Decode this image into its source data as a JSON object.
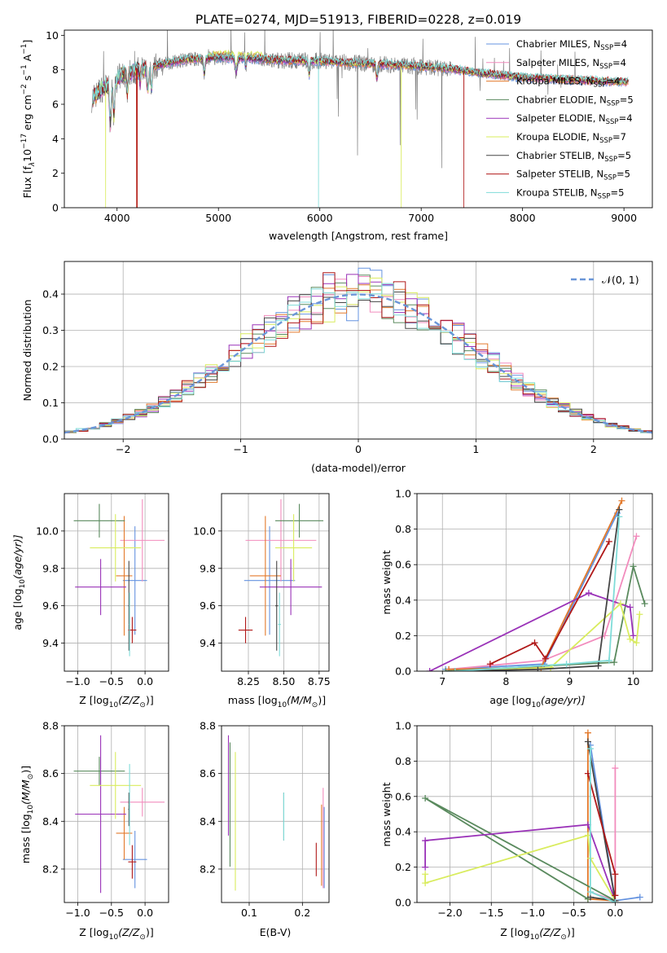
{
  "figure_title": "PLATE=0274, MJD=51913, FIBERID=0228, z=0.019",
  "models": [
    {
      "name": "Chabrier MILES",
      "nssp": "4",
      "color": "#6593e0"
    },
    {
      "name": "Salpeter MILES",
      "nssp": "4",
      "color": "#f28cbd"
    },
    {
      "name": "Kroupa MILES",
      "nssp": "4",
      "color": "#e37a2c"
    },
    {
      "name": "Chabrier ELODIE",
      "nssp": "5",
      "color": "#5a8a5e"
    },
    {
      "name": "Salpeter ELODIE",
      "nssp": "4",
      "color": "#9a32b8"
    },
    {
      "name": "Kroupa ELODIE",
      "nssp": "7",
      "color": "#d9ec5e"
    },
    {
      "name": "Chabrier STELIB",
      "nssp": "5",
      "color": "#454545"
    },
    {
      "name": "Salpeter STELIB",
      "nssp": "5",
      "color": "#b01818"
    },
    {
      "name": "Kroupa STELIB",
      "nssp": "5",
      "color": "#7fdcd8"
    }
  ],
  "labels": {
    "spec_x": "wavelength [Angstrom, rest frame]",
    "spec_y_pre": "Flux [f",
    "spec_y_lam": "λ",
    "spec_y_mid": "10",
    "spec_y_e1": "−17",
    "spec_y_unit": " erg cm",
    "spec_y_e2": "−2",
    "spec_y_s": " s",
    "spec_y_e3": "−1",
    "spec_y_a": " A",
    "spec_y_e4": "−1",
    "spec_y_end": "]",
    "nssp_pre": ", N",
    "nssp_sub": "SSP",
    "nssp_eq": "=",
    "hist_x": "(data-model)/error",
    "hist_y": "Normed distribution",
    "hist_legend_pre": "𝒩(0, 1)",
    "age_label": "age  [log",
    "age_label_post": "(age/yr)]",
    "Z_label": "Z [log",
    "Z_label_post": "(Z/Z",
    "Z_label_end": ")]",
    "mass_label": "mass [log",
    "mass_label_post": "(M/M",
    "mass_label_end": ")]",
    "sun": "⊙",
    "ten": "10",
    "ebv_label": "E(B-V)",
    "mw_label": "mass weight"
  },
  "chart_data": [
    {
      "type": "line",
      "title": "PLATE=0274, MJD=51913, FIBERID=0228, z=0.019",
      "xlabel": "wavelength [Angstrom, rest frame]",
      "ylabel": "Flux [fλ 10^-17 erg cm^-2 s^-1 A^-1]",
      "xlim": [
        3480,
        9280
      ],
      "ylim": [
        0,
        10.3
      ],
      "xticks": [
        4000,
        5000,
        6000,
        7000,
        8000,
        9000
      ],
      "yticks": [
        0,
        2,
        4,
        6,
        8,
        10
      ],
      "continuum": [
        [
          3750,
          6.3
        ],
        [
          3850,
          6.9
        ],
        [
          3950,
          7.2
        ],
        [
          4050,
          7.7
        ],
        [
          4150,
          7.9
        ],
        [
          4300,
          8.1
        ],
        [
          4500,
          8.4
        ],
        [
          4700,
          8.6
        ],
        [
          5000,
          8.7
        ],
        [
          5300,
          8.65
        ],
        [
          5600,
          8.55
        ],
        [
          6000,
          8.5
        ],
        [
          6500,
          8.35
        ],
        [
          7000,
          8.2
        ],
        [
          7300,
          8.05
        ],
        [
          7600,
          7.8
        ],
        [
          8000,
          7.55
        ],
        [
          8500,
          7.4
        ],
        [
          9000,
          7.3
        ],
        [
          9050,
          7.3
        ]
      ],
      "legend_position": "upper right"
    },
    {
      "type": "bar",
      "xlabel": "(data-model)/error",
      "ylabel": "Normed distribution",
      "xlim": [
        -2.5,
        2.5
      ],
      "ylim": [
        0,
        0.49
      ],
      "xticks": [
        -2,
        -1,
        0,
        1,
        2
      ],
      "yticks": [
        0.0,
        0.1,
        0.2,
        0.3,
        0.4
      ],
      "bin_width": 0.1,
      "reference": "N(0,1)",
      "legend_position": "upper right"
    },
    {
      "type": "scatter",
      "xlabel": "Z [log10(Z/Z⊙)]",
      "ylabel": "age [log10(age/yr)]",
      "xlim": [
        -1.2,
        0.35
      ],
      "ylim": [
        9.25,
        10.2
      ],
      "xticks": [
        -1.0,
        -0.5,
        0.0
      ],
      "yticks": [
        9.4,
        9.6,
        9.8,
        10.0
      ],
      "points": [
        {
          "x": -0.15,
          "y": 9.735,
          "xerr": 0.18,
          "yerr": 0.29
        },
        {
          "x": -0.04,
          "y": 9.95,
          "xerr": 0.33,
          "yerr": 0.22
        },
        {
          "x": -0.31,
          "y": 9.76,
          "xerr": 0.12,
          "yerr": 0.32
        },
        {
          "x": -0.68,
          "y": 10.055,
          "xerr": 0.38,
          "yerr": 0.09
        },
        {
          "x": -0.66,
          "y": 9.7,
          "xerr": 0.38,
          "yerr": 0.15
        },
        {
          "x": -0.44,
          "y": 9.91,
          "xerr": 0.38,
          "yerr": 0.18
        },
        {
          "x": -0.24,
          "y": 9.6,
          "xerr": 0.01,
          "yerr": 0.24
        },
        {
          "x": -0.19,
          "y": 9.47,
          "xerr": 0.06,
          "yerr": 0.07
        },
        {
          "x": -0.23,
          "y": 9.5,
          "xerr": 0.01,
          "yerr": 0.17
        }
      ]
    },
    {
      "type": "scatter",
      "xlabel": "mass [log10(M/M⊙)]",
      "ylabel": "",
      "xlim": [
        8.06,
        8.82
      ],
      "ylim": [
        9.25,
        10.2
      ],
      "xticks": [
        8.25,
        8.5,
        8.75
      ],
      "yticks": [
        9.4,
        9.6,
        9.8,
        10.0
      ],
      "points": [
        {
          "x": 8.4,
          "y": 9.735,
          "xerr": 0.18,
          "yerr": 0.29
        },
        {
          "x": 8.48,
          "y": 9.95,
          "xerr": 0.25,
          "yerr": 0.22
        },
        {
          "x": 8.37,
          "y": 9.76,
          "xerr": 0.11,
          "yerr": 0.32
        },
        {
          "x": 8.61,
          "y": 10.055,
          "xerr": 0.17,
          "yerr": 0.09
        },
        {
          "x": 8.55,
          "y": 9.7,
          "xerr": 0.22,
          "yerr": 0.15
        },
        {
          "x": 8.57,
          "y": 9.91,
          "xerr": 0.13,
          "yerr": 0.18
        },
        {
          "x": 8.45,
          "y": 9.6,
          "xerr": 0.01,
          "yerr": 0.24
        },
        {
          "x": 8.23,
          "y": 9.47,
          "xerr": 0.05,
          "yerr": 0.07
        },
        {
          "x": 8.47,
          "y": 9.5,
          "xerr": 0.01,
          "yerr": 0.17
        }
      ]
    },
    {
      "type": "line",
      "xlabel": "age [log10(age/yr)]",
      "ylabel": "mass weight",
      "xlim": [
        6.6,
        10.3
      ],
      "ylim": [
        0,
        1.0
      ],
      "xticks": [
        7,
        8,
        9,
        10
      ],
      "yticks": [
        0.0,
        0.2,
        0.4,
        0.6,
        0.8,
        1.0
      ],
      "series": [
        {
          "x": [
            7.05,
            8.6,
            9.75
          ],
          "y": [
            0.01,
            0.04,
            0.89
          ]
        },
        {
          "x": [
            7.1,
            8.58,
            9.55,
            10.05
          ],
          "y": [
            0.01,
            0.06,
            0.2,
            0.76
          ]
        },
        {
          "x": [
            7.1,
            8.55,
            9.82
          ],
          "y": [
            0.01,
            0.02,
            0.96
          ]
        },
        {
          "x": [
            7.05,
            9.7,
            10.0,
            10.18
          ],
          "y": [
            0.0,
            0.05,
            0.59,
            0.38
          ]
        },
        {
          "x": [
            6.8,
            9.3,
            9.95,
            10.0
          ],
          "y": [
            0.0,
            0.44,
            0.36,
            0.2
          ]
        },
        {
          "x": [
            7.2,
            8.7,
            9.8,
            9.95,
            10.05,
            10.1
          ],
          "y": [
            0.0,
            0.02,
            0.38,
            0.18,
            0.16,
            0.32
          ]
        },
        {
          "x": [
            7.2,
            8.5,
            9.45,
            9.78
          ],
          "y": [
            0.0,
            0.01,
            0.03,
            0.91
          ]
        },
        {
          "x": [
            7.75,
            8.45,
            8.62,
            9.62
          ],
          "y": [
            0.04,
            0.16,
            0.07,
            0.73
          ]
        },
        {
          "x": [
            7.2,
            8.95,
            9.62,
            9.78
          ],
          "y": [
            0.0,
            0.04,
            0.06,
            0.87
          ]
        }
      ]
    },
    {
      "type": "scatter",
      "xlabel": "Z [log10(Z/Z⊙)]",
      "ylabel": "mass [log10(M/M⊙)]",
      "xlim": [
        -1.2,
        0.35
      ],
      "ylim": [
        8.06,
        8.8
      ],
      "xticks": [
        -1.0,
        -0.5,
        0.0
      ],
      "yticks": [
        8.2,
        8.4,
        8.6,
        8.8
      ],
      "points": [
        {
          "x": -0.15,
          "y": 8.24,
          "xerr": 0.18,
          "yerr": 0.12
        },
        {
          "x": -0.04,
          "y": 8.48,
          "xerr": 0.33,
          "yerr": 0.06
        },
        {
          "x": -0.31,
          "y": 8.35,
          "xerr": 0.12,
          "yerr": 0.11
        },
        {
          "x": -0.68,
          "y": 8.61,
          "xerr": 0.38,
          "yerr": 0.06
        },
        {
          "x": -0.66,
          "y": 8.43,
          "xerr": 0.38,
          "yerr": 0.33
        },
        {
          "x": -0.44,
          "y": 8.55,
          "xerr": 0.38,
          "yerr": 0.14
        },
        {
          "x": -0.24,
          "y": 8.45,
          "xerr": 0.01,
          "yerr": 0.07
        },
        {
          "x": -0.19,
          "y": 8.23,
          "xerr": 0.06,
          "yerr": 0.07
        },
        {
          "x": -0.23,
          "y": 8.47,
          "xerr": 0.01,
          "yerr": 0.17
        }
      ]
    },
    {
      "type": "scatter",
      "xlabel": "E(B-V)",
      "ylabel": "",
      "xlim": [
        0.048,
        0.25
      ],
      "ylim": [
        8.06,
        8.8
      ],
      "xticks": [
        0.1,
        0.2
      ],
      "yticks": [
        8.2,
        8.4,
        8.6,
        8.8
      ],
      "points": [
        {
          "x": 0.241,
          "y": 8.29,
          "yerr": 0.17
        },
        {
          "x": 0.239,
          "y": 8.33,
          "yerr": 0.21
        },
        {
          "x": 0.236,
          "y": 8.3,
          "yerr": 0.17
        },
        {
          "x": 0.064,
          "y": 8.47,
          "yerr": 0.26
        },
        {
          "x": 0.061,
          "y": 8.55,
          "yerr": 0.21
        },
        {
          "x": 0.074,
          "y": 8.4,
          "yerr": 0.29
        },
        {
          "x": 0.165,
          "y": 8.42,
          "yerr": 0.1
        },
        {
          "x": 0.226,
          "y": 8.24,
          "yerr": 0.07
        },
        {
          "x": 0.165,
          "y": 8.42,
          "yerr": 0.1
        }
      ]
    },
    {
      "type": "line",
      "xlabel": "Z [log10(Z/Z⊙)]",
      "ylabel": "mass weight",
      "xlim": [
        -2.4,
        0.45
      ],
      "ylim": [
        0,
        1.0
      ],
      "xticks": [
        -2.0,
        -1.5,
        -1.0,
        -0.5,
        0.0
      ],
      "yticks": [
        0.0,
        0.2,
        0.4,
        0.6,
        0.8,
        1.0
      ],
      "series": [
        {
          "x": [
            0.3,
            0.0,
            -0.3
          ],
          "y": [
            0.03,
            0.01,
            0.89
          ]
        },
        {
          "x": [
            -0.3,
            0.0,
            0.0
          ],
          "y": [
            0.06,
            0.01,
            0.76
          ]
        },
        {
          "x": [
            0.0,
            -0.33,
            -0.33
          ],
          "y": [
            0.01,
            0.02,
            0.96
          ]
        },
        {
          "x": [
            -0.33,
            -2.3,
            0.0
          ],
          "y": [
            0.02,
            0.59,
            0.01
          ]
        },
        {
          "x": [
            -2.3,
            -2.3,
            -0.33,
            0.0
          ],
          "y": [
            0.2,
            0.35,
            0.44,
            0.01
          ]
        },
        {
          "x": [
            -2.3,
            -2.3,
            -0.33,
            -0.3,
            0.0
          ],
          "y": [
            0.16,
            0.11,
            0.38,
            0.25,
            0.01
          ]
        },
        {
          "x": [
            -0.33,
            0.0,
            -0.3
          ],
          "y": [
            0.91,
            0.01,
            0.03
          ]
        },
        {
          "x": [
            -0.33,
            0.0,
            0.0
          ],
          "y": [
            0.73,
            0.16,
            0.04
          ]
        },
        {
          "x": [
            -0.3,
            -0.3,
            0.0
          ],
          "y": [
            0.87,
            0.06,
            0.0
          ]
        }
      ]
    }
  ]
}
